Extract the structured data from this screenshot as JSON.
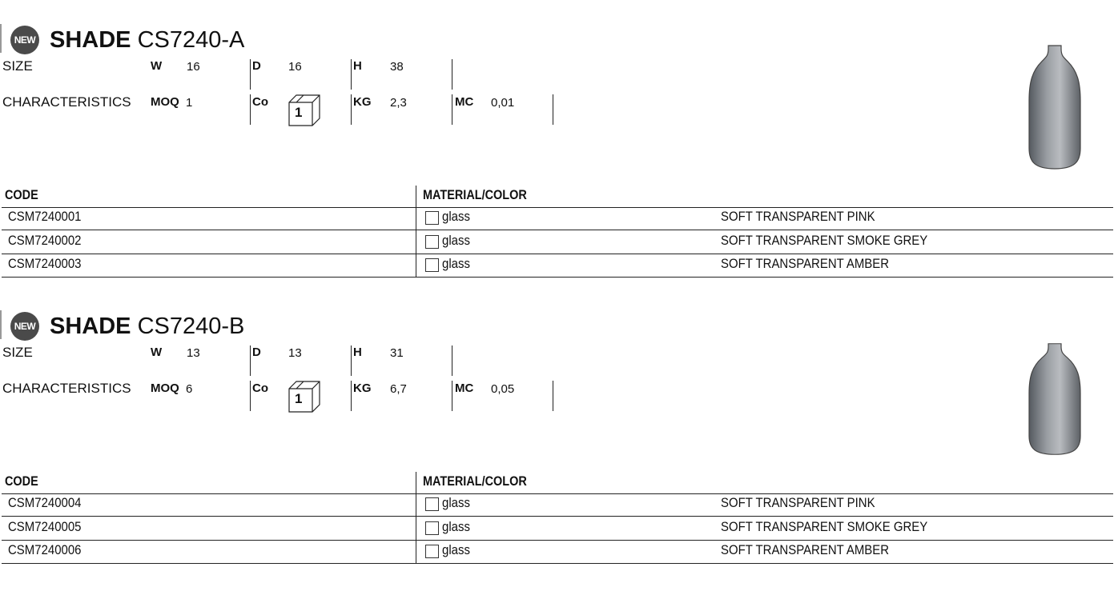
{
  "products": [
    {
      "badge": "NEW",
      "name": "SHADE",
      "model": "CS7240-A",
      "size_label": "SIZE",
      "w_label": "W",
      "w": "16",
      "d_label": "D",
      "d": "16",
      "h_label": "H",
      "h": "38",
      "char_label": "CHARACTERISTICS",
      "moq_label": "MOQ",
      "moq": "1",
      "co_label": "Co",
      "co": "1",
      "kg_label": "KG",
      "kg": "2,3",
      "mc_label": "MC",
      "mc": "0,01",
      "table": {
        "headers": [
          "CODE",
          "MATERIAL/COLOR"
        ],
        "rows": [
          {
            "code": "CSM7240001",
            "material": "glass",
            "color": "SOFT TRANSPARENT PINK"
          },
          {
            "code": "CSM7240002",
            "material": "glass",
            "color": "SOFT TRANSPARENT SMOKE GREY"
          },
          {
            "code": "CSM7240003",
            "material": "glass",
            "color": "SOFT TRANSPARENT AMBER"
          }
        ]
      }
    },
    {
      "badge": "NEW",
      "name": "SHADE",
      "model": "CS7240-B",
      "size_label": "SIZE",
      "w_label": "W",
      "w": "13",
      "d_label": "D",
      "d": "13",
      "h_label": "H",
      "h": "31",
      "char_label": "CHARACTERISTICS",
      "moq_label": "MOQ",
      "moq": "6",
      "co_label": "Co",
      "co": "1",
      "kg_label": "KG",
      "kg": "6,7",
      "mc_label": "MC",
      "mc": "0,05",
      "table": {
        "headers": [
          "CODE",
          "MATERIAL/COLOR"
        ],
        "rows": [
          {
            "code": "CSM7240004",
            "material": "glass",
            "color": "SOFT TRANSPARENT PINK"
          },
          {
            "code": "CSM7240005",
            "material": "glass",
            "color": "SOFT TRANSPARENT SMOKE GREY"
          },
          {
            "code": "CSM7240006",
            "material": "glass",
            "color": "SOFT TRANSPARENT AMBER"
          }
        ]
      }
    }
  ],
  "colors": {
    "badge": "#4a4a4a",
    "vase": "#6b6e73"
  }
}
